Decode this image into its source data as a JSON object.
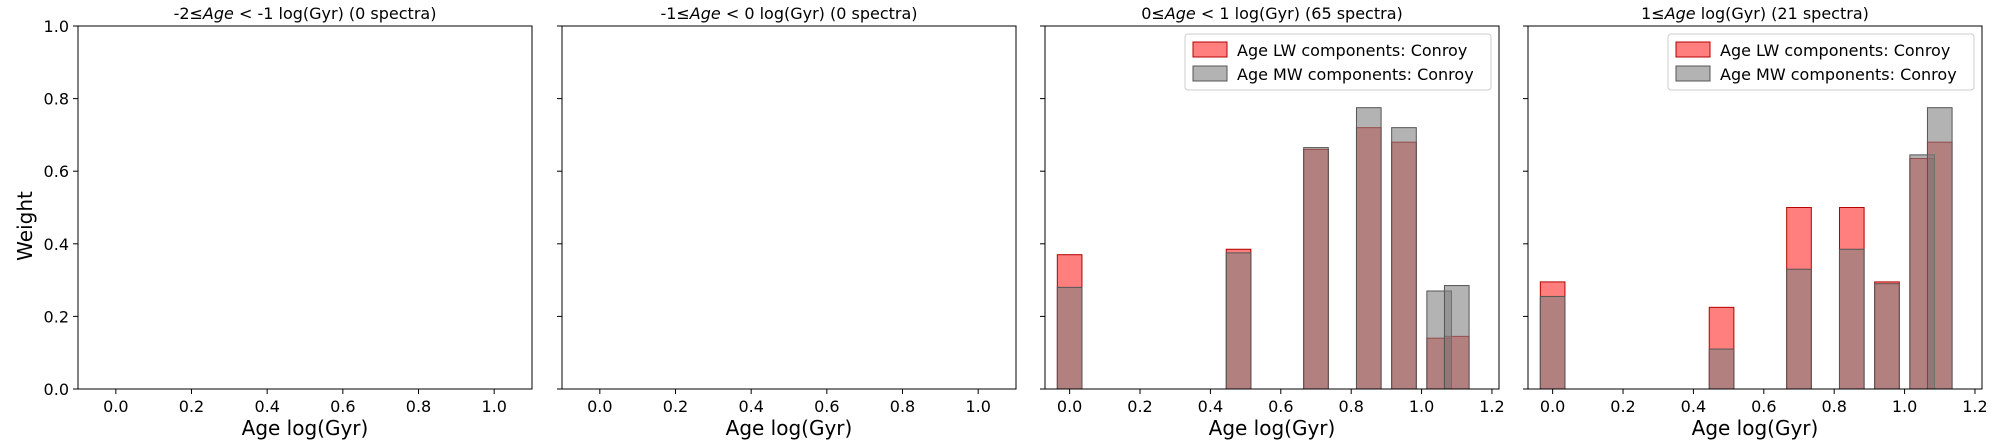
{
  "figure": {
    "ylabel": "Weight",
    "colors": {
      "lw": "#ff0000",
      "mw": "#808080",
      "edge_lw": "#b30000",
      "edge_mw": "#555555",
      "axis": "#000000"
    }
  },
  "chart_data": [
    {
      "type": "bar",
      "title_prefix": "-2≤",
      "title_italic": "Age",
      "title_suffix": " < -1 log(Gyr) (0 spectra)",
      "xlabel": "Age log(Gyr)",
      "ylabel": "Weight",
      "xlim": [
        -0.1,
        1.1
      ],
      "ylim": [
        0,
        1.0
      ],
      "xticks": [
        "0.0",
        "0.2",
        "0.4",
        "0.6",
        "0.8",
        "1.0"
      ],
      "yticks": [
        "0.0",
        "0.2",
        "0.4",
        "0.6",
        "0.8",
        "1.0"
      ],
      "bar_width": 0.07,
      "series": []
    },
    {
      "type": "bar",
      "title_prefix": "-1≤",
      "title_italic": "Age",
      "title_suffix": " < 0 log(Gyr) (0 spectra)",
      "xlabel": "Age log(Gyr)",
      "ylabel": "",
      "xlim": [
        -0.1,
        1.1
      ],
      "ylim": [
        0,
        1.0
      ],
      "xticks": [
        "0.0",
        "0.2",
        "0.4",
        "0.6",
        "0.8",
        "1.0"
      ],
      "yticks": [
        "0.0",
        "0.2",
        "0.4",
        "0.6",
        "0.8",
        "1.0"
      ],
      "bar_width": 0.07,
      "series": []
    },
    {
      "type": "bar",
      "title_prefix": "0≤",
      "title_italic": "Age",
      "title_suffix": " < 1 log(Gyr) (65 spectra)",
      "xlabel": "Age log(Gyr)",
      "ylabel": "",
      "xlim": [
        -0.07,
        1.22
      ],
      "ylim": [
        0,
        1.0
      ],
      "xticks": [
        "0.0",
        "0.2",
        "0.4",
        "0.6",
        "0.8",
        "1.0",
        "1.2"
      ],
      "yticks": [
        "0.0",
        "0.2",
        "0.4",
        "0.6",
        "0.8",
        "1.0"
      ],
      "bar_width": 0.07,
      "legend": "top-right",
      "series": [
        {
          "name": "Age LW components: Conroy",
          "color": "#ff0000",
          "x": [
            0.0,
            0.48,
            0.7,
            0.85,
            0.95,
            1.05,
            1.1
          ],
          "values": [
            0.37,
            0.385,
            0.66,
            0.72,
            0.68,
            0.14,
            0.145
          ]
        },
        {
          "name": "Age MW components: Conroy",
          "color": "#808080",
          "x": [
            0.0,
            0.48,
            0.7,
            0.85,
            0.95,
            1.05,
            1.1
          ],
          "values": [
            0.28,
            0.375,
            0.665,
            0.775,
            0.72,
            0.27,
            0.285
          ]
        }
      ]
    },
    {
      "type": "bar",
      "title_prefix": "1≤",
      "title_italic": "Age",
      "title_suffix": " log(Gyr) (21 spectra)",
      "xlabel": "Age log(Gyr)",
      "ylabel": "",
      "xlim": [
        -0.07,
        1.22
      ],
      "ylim": [
        0,
        1.0
      ],
      "xticks": [
        "0.0",
        "0.2",
        "0.4",
        "0.6",
        "0.8",
        "1.0",
        "1.2"
      ],
      "yticks": [
        "0.0",
        "0.2",
        "0.4",
        "0.6",
        "0.8",
        "1.0"
      ],
      "bar_width": 0.07,
      "legend": "top-right",
      "series": [
        {
          "name": "Age LW components: Conroy",
          "color": "#ff0000",
          "x": [
            0.0,
            0.48,
            0.7,
            0.85,
            0.95,
            1.05,
            1.1
          ],
          "values": [
            0.295,
            0.225,
            0.5,
            0.5,
            0.295,
            0.635,
            0.68
          ]
        },
        {
          "name": "Age MW components: Conroy",
          "color": "#808080",
          "x": [
            0.0,
            0.48,
            0.7,
            0.85,
            0.95,
            1.05,
            1.1
          ],
          "values": [
            0.255,
            0.11,
            0.33,
            0.385,
            0.29,
            0.645,
            0.775
          ]
        }
      ]
    }
  ]
}
